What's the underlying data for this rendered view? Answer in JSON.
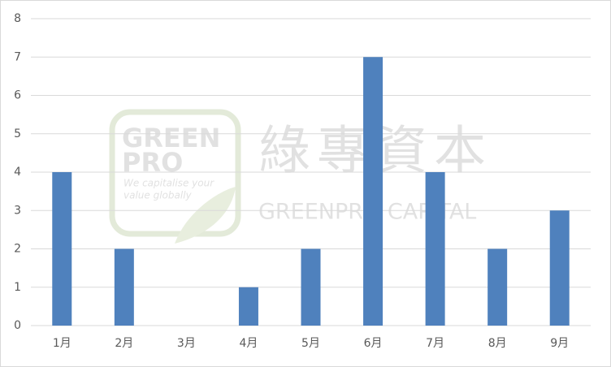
{
  "chart_data": {
    "type": "bar",
    "categories": [
      "1月",
      "2月",
      "3月",
      "4月",
      "5月",
      "6月",
      "7月",
      "8月",
      "9月"
    ],
    "values": [
      4,
      2,
      0,
      1,
      2,
      7,
      4,
      2,
      3
    ],
    "color": "#4f81bd",
    "ylim": [
      0,
      8
    ],
    "yticks": [
      0,
      1,
      2,
      3,
      4,
      5,
      6,
      7,
      8
    ],
    "grid": true,
    "watermark": {
      "logo_line1": "GREEN",
      "logo_line2": "PRO",
      "tagline_line1": "We capitalise your",
      "tagline_line2": "value globally",
      "chinese": "綠專資本",
      "english": "GREENPRO CAPITAL"
    }
  }
}
